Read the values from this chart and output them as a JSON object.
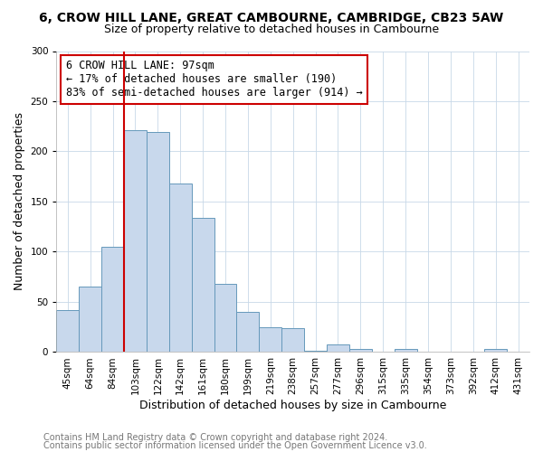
{
  "title": "6, CROW HILL LANE, GREAT CAMBOURNE, CAMBRIDGE, CB23 5AW",
  "subtitle": "Size of property relative to detached houses in Cambourne",
  "xlabel": "Distribution of detached houses by size in Cambourne",
  "ylabel": "Number of detached properties",
  "bar_labels": [
    "45sqm",
    "64sqm",
    "84sqm",
    "103sqm",
    "122sqm",
    "142sqm",
    "161sqm",
    "180sqm",
    "199sqm",
    "219sqm",
    "238sqm",
    "257sqm",
    "277sqm",
    "296sqm",
    "315sqm",
    "335sqm",
    "354sqm",
    "373sqm",
    "392sqm",
    "412sqm",
    "431sqm"
  ],
  "bar_values": [
    42,
    65,
    105,
    221,
    219,
    168,
    134,
    68,
    40,
    25,
    24,
    1,
    8,
    3,
    0,
    3,
    0,
    0,
    0,
    3,
    0
  ],
  "bar_color": "#c8d8ec",
  "bar_edge_color": "#6699bb",
  "vline_color": "#cc0000",
  "annotation_text": "6 CROW HILL LANE: 97sqm\n← 17% of detached houses are smaller (190)\n83% of semi-detached houses are larger (914) →",
  "annotation_box_color": "#ffffff",
  "annotation_box_edge": "#cc0000",
  "ylim": [
    0,
    300
  ],
  "yticks": [
    0,
    50,
    100,
    150,
    200,
    250,
    300
  ],
  "footer1": "Contains HM Land Registry data © Crown copyright and database right 2024.",
  "footer2": "Contains public sector information licensed under the Open Government Licence v3.0.",
  "bg_color": "#ffffff",
  "plot_bg_color": "#ffffff",
  "title_fontsize": 10,
  "subtitle_fontsize": 9,
  "axis_label_fontsize": 9,
  "tick_fontsize": 7.5,
  "annotation_fontsize": 8.5,
  "footer_fontsize": 7
}
